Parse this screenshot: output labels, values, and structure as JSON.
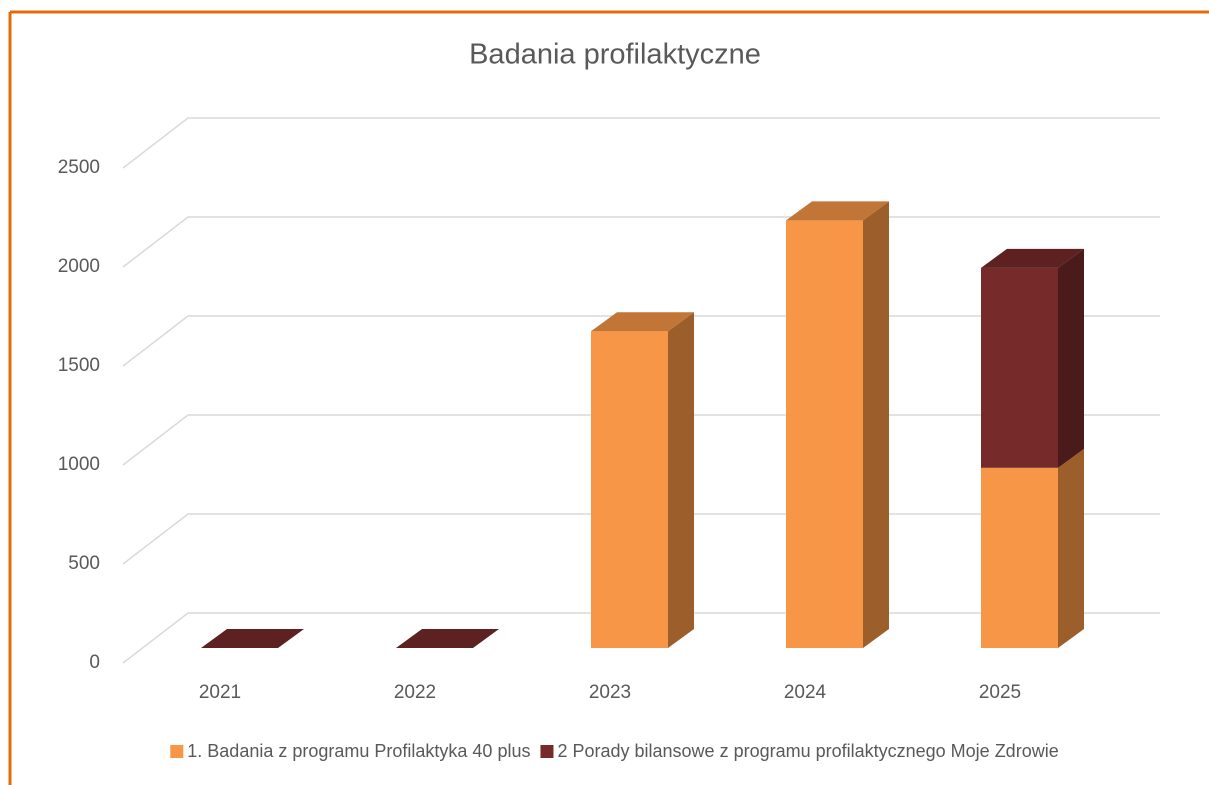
{
  "chart_data": {
    "type": "bar3d_stacked",
    "title": "Badania profilaktyczne",
    "categories": [
      "2021",
      "2022",
      "2023",
      "2024",
      "2025"
    ],
    "series": [
      {
        "name": "1. Badania z programu Profilaktyka 40 plus",
        "color": "#F79646",
        "values": [
          0,
          0,
          1600,
          2160,
          910
        ]
      },
      {
        "name": "2 Porady bilansowe z programu profilaktycznego Moje Zdrowie",
        "color": "#772A2A",
        "values": [
          0,
          0,
          0,
          0,
          1010
        ]
      }
    ],
    "ylim": [
      0,
      2500
    ],
    "yticks": [
      0,
      500,
      1000,
      1500,
      2000,
      2500
    ],
    "grid": true,
    "legend": "bottom"
  }
}
